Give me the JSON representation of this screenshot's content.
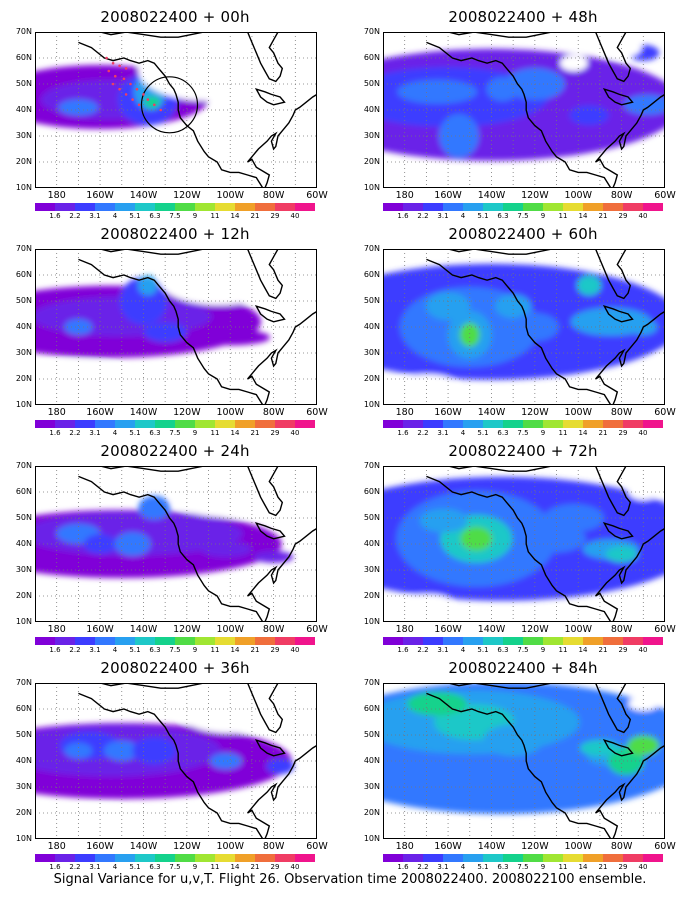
{
  "panels": [
    {
      "title": "2008022400 + 00h",
      "blobs": "p0"
    },
    {
      "title": "2008022400 + 12h",
      "blobs": "p12"
    },
    {
      "title": "2008022400 + 24h",
      "blobs": "p24"
    },
    {
      "title": "2008022400 + 36h",
      "blobs": "p36"
    },
    {
      "title": "2008022400 + 48h",
      "blobs": "p48"
    },
    {
      "title": "2008022400 + 60h",
      "blobs": "p60"
    },
    {
      "title": "2008022400 + 72h",
      "blobs": "p72"
    },
    {
      "title": "2008022400 + 84h",
      "blobs": "p84"
    }
  ],
  "lat_labels": [
    "70N",
    "60N",
    "50N",
    "40N",
    "30N",
    "20N",
    "10N"
  ],
  "lon_labels": [
    "180",
    "160W",
    "140W",
    "120W",
    "100W",
    "80W",
    "60W"
  ],
  "colorbar": {
    "levels": [
      "1.6",
      "2.2",
      "3.1",
      "4",
      "5.1",
      "6.3",
      "7.5",
      "9",
      "11",
      "14",
      "21",
      "29",
      "40"
    ],
    "colors": [
      "#8000d8",
      "#6a22e8",
      "#3c3cff",
      "#3278ff",
      "#28a0f0",
      "#1ec8c8",
      "#14d28c",
      "#50dc46",
      "#a0e632",
      "#e6dc32",
      "#f0a028",
      "#f06e3c",
      "#f03c64",
      "#f0148c"
    ]
  },
  "caption": "Signal Variance for u,v,T. Flight 26. Observation time 2008022400. 2008022100 ensemble."
}
